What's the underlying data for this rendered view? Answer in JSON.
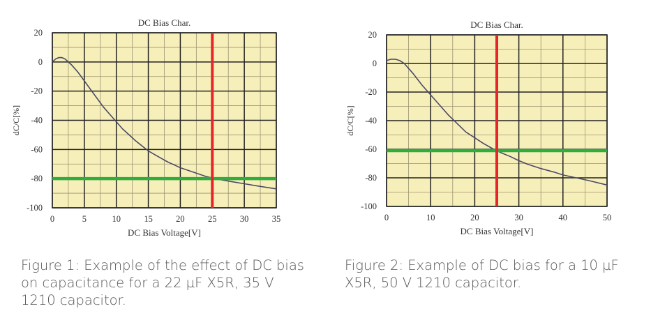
{
  "colors": {
    "plot_bg": "#f7efb9",
    "grid": "#222222",
    "curve": "#4a4a66",
    "marker_v": "#e8242b",
    "marker_h": "#2fae3e",
    "caption": "#555555"
  },
  "chart_data": [
    {
      "type": "line",
      "title": "DC Bias Char.",
      "xlabel": "DC Bias Voltage[V]",
      "ylabel": "dC/C[%]",
      "xlim": [
        0,
        35
      ],
      "ylim": [
        -100,
        20
      ],
      "xticks": [
        0,
        5,
        10,
        15,
        20,
        25,
        30,
        35
      ],
      "yticks": [
        20,
        0,
        -20,
        -40,
        -60,
        -80,
        -100
      ],
      "grid": true,
      "series": [
        {
          "name": "dC/C",
          "x": [
            0,
            0.5,
            1,
            1.5,
            2,
            3,
            4,
            5,
            6,
            7,
            8,
            9,
            10,
            11,
            12,
            13,
            14,
            15,
            16,
            17,
            18,
            19,
            20,
            21,
            22,
            23,
            24,
            25,
            26,
            28,
            30,
            32,
            35
          ],
          "y": [
            0,
            2,
            3,
            3,
            2,
            -2,
            -7,
            -13,
            -19,
            -25,
            -31,
            -36,
            -41,
            -46,
            -50,
            -54,
            -57.5,
            -61,
            -63.5,
            -66,
            -68.5,
            -70.5,
            -72.5,
            -74,
            -75.5,
            -77,
            -78.5,
            -79.5,
            -80.5,
            -82,
            -83.5,
            -85,
            -87
          ]
        }
      ],
      "markers": {
        "vertical_x": 25,
        "horizontal_y": -80
      }
    },
    {
      "type": "line",
      "title": "DC Bias Char.",
      "xlabel": "DC Bias Voltage[V]",
      "ylabel": "dC/C[%]",
      "xlim": [
        0,
        50
      ],
      "ylim": [
        -100,
        20
      ],
      "xticks": [
        0,
        10,
        20,
        30,
        40,
        50
      ],
      "yticks": [
        20,
        0,
        -20,
        -40,
        -60,
        -80,
        -100
      ],
      "grid": true,
      "series": [
        {
          "name": "dC/C",
          "x": [
            0,
            1,
            2,
            3,
            4,
            6,
            8,
            10,
            12,
            14,
            16,
            18,
            20,
            22,
            24,
            25,
            26,
            28,
            30,
            32,
            35,
            38,
            40,
            43,
            46,
            50
          ],
          "y": [
            2,
            3,
            3,
            2,
            0,
            -7,
            -15,
            -22,
            -29,
            -36,
            -42,
            -48,
            -52,
            -56,
            -59.5,
            -61,
            -62.5,
            -65,
            -68,
            -70.5,
            -73.5,
            -76,
            -78,
            -80,
            -82,
            -85
          ]
        }
      ],
      "markers": {
        "vertical_x": 25,
        "horizontal_y": -61
      }
    }
  ],
  "captions": {
    "fig1": "Figure 1: Example of the effect of DC bias on capacitance for a 22 µF X5R, 35 V 1210 capacitor.",
    "fig2": "Figure 2: Example of DC bias for a 10 µF X5R, 50 V 1210 capacitor."
  }
}
